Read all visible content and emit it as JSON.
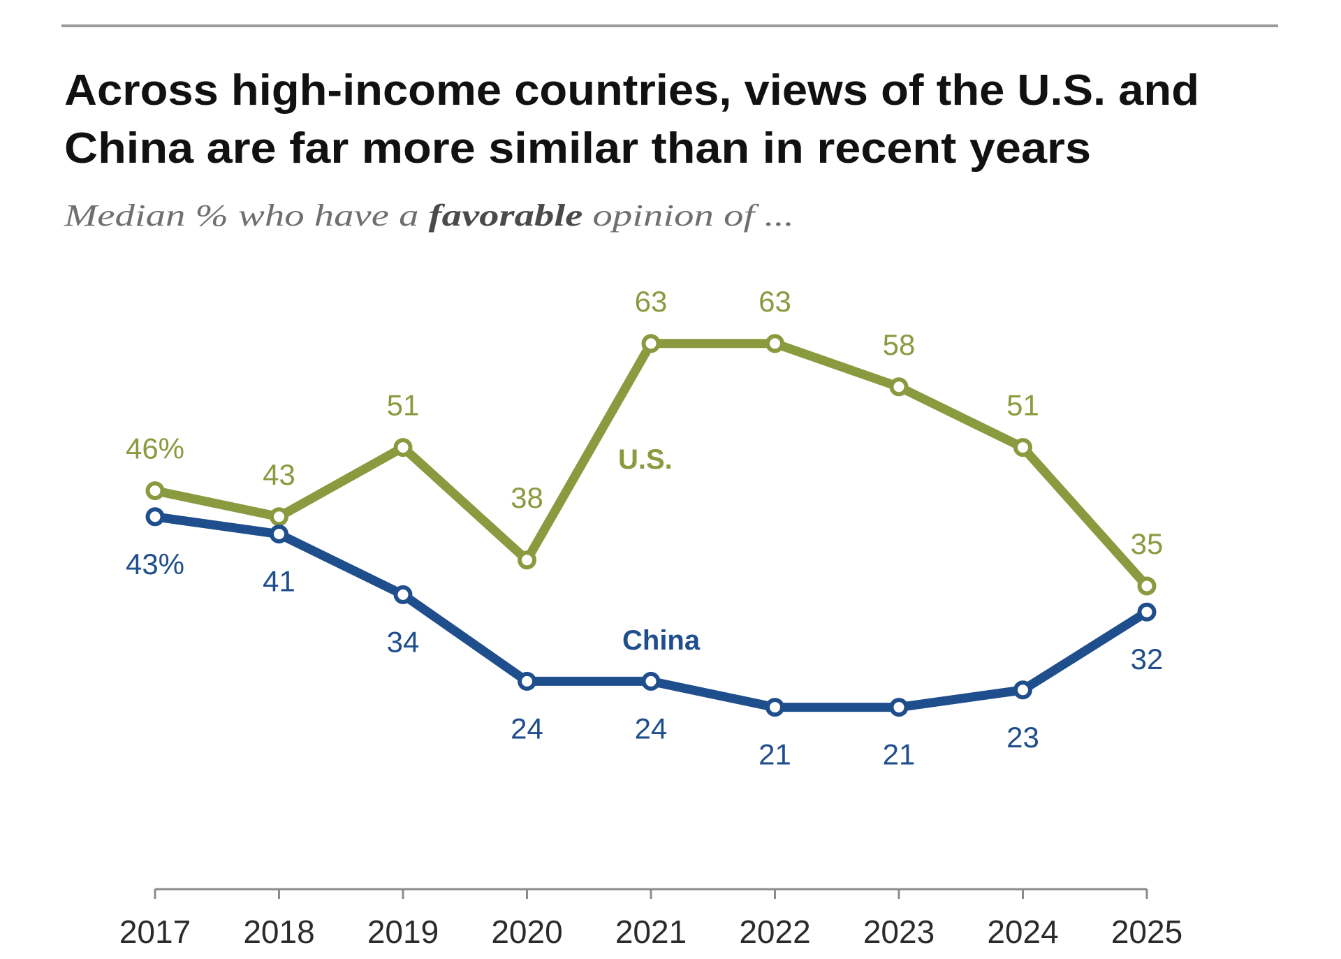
{
  "header": {
    "title_line1": "Across high-income countries, views of the U.S. and",
    "title_line2": "China are far more similar than in recent years",
    "subtitle_before": "Median % who have a ",
    "subtitle_emphasis": "favorable",
    "subtitle_after": " opinion of ..."
  },
  "colors": {
    "us": "#8a9a3f",
    "china": "#1f4e8c",
    "axis": "#8c8c8c",
    "rule": "#9a9a9a"
  },
  "chart_data": {
    "type": "line",
    "title": "Across high-income countries, views of the U.S. and China are far more similar than in recent years",
    "subtitle": "Median % who have a favorable opinion of ...",
    "xlabel": "",
    "ylabel": "",
    "x": [
      "2017",
      "2018",
      "2019",
      "2020",
      "2021",
      "2022",
      "2023",
      "2024",
      "2025"
    ],
    "ylim": [
      0,
      70
    ],
    "grid": false,
    "legend": "inline labels",
    "series": [
      {
        "name": "U.S.",
        "key": "us",
        "values": [
          46,
          43,
          51,
          38,
          63,
          63,
          58,
          51,
          35
        ],
        "labels": [
          "46%",
          "43",
          "51",
          "38",
          "63",
          "63",
          "58",
          "51",
          "35"
        ],
        "label_position": "above"
      },
      {
        "name": "China",
        "key": "china",
        "values": [
          43,
          41,
          34,
          24,
          24,
          21,
          21,
          23,
          32
        ],
        "labels": [
          "43%",
          "41",
          "34",
          "24",
          "24",
          "21",
          "21",
          "23",
          "32"
        ],
        "label_position": "below"
      }
    ]
  }
}
